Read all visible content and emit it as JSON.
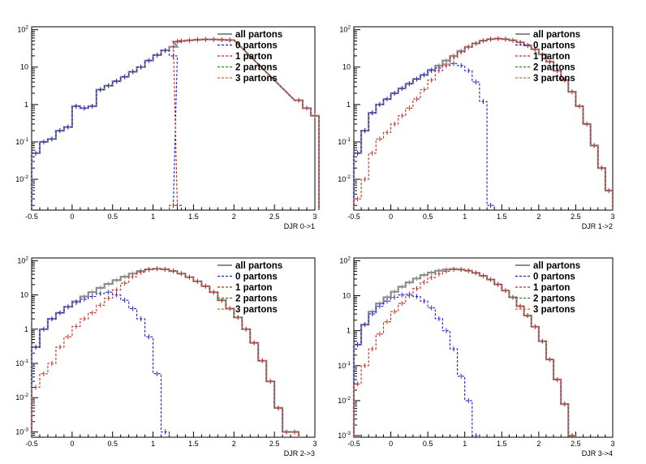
{
  "panels": [
    {
      "xlabel": "DJR 0->1"
    },
    {
      "xlabel": "DJR 1->2"
    },
    {
      "xlabel": "DJR 2->3"
    },
    {
      "xlabel": "DJR 3->4"
    }
  ],
  "legend": [
    "all partons",
    "0 partons",
    "1 parton",
    "2 partons",
    "3 partons"
  ],
  "colors": {
    "all": "#8c8c8c",
    "p0": "#1f1fd6",
    "p1": "#c8281e",
    "p2": "#1e8c1e",
    "p3": "#d2691e",
    "axis": "#000000"
  },
  "chart_data": [
    {
      "type": "line",
      "title": "",
      "xlabel": "DJR 0->1",
      "ylabel": "",
      "xlim": [
        -0.5,
        3
      ],
      "ylim": [
        0.0015,
        120
      ],
      "ylog": true,
      "xticks": [
        "-0.5",
        "0",
        "0.5",
        "1",
        "1.5",
        "2",
        "2.5",
        "3"
      ],
      "yticks": [
        "10^-2",
        "10^-1",
        "1",
        "10",
        "10^2"
      ],
      "x": [
        -0.45,
        -0.35,
        -0.25,
        -0.15,
        -0.05,
        0.05,
        0.15,
        0.25,
        0.35,
        0.45,
        0.55,
        0.65,
        0.75,
        0.85,
        0.95,
        1.05,
        1.15,
        1.25,
        1.3,
        1.35,
        1.45,
        1.55,
        1.65,
        1.75,
        1.85,
        1.95,
        2.8,
        2.9,
        3.0
      ],
      "series": [
        {
          "name": "all partons",
          "values": [
            0.05,
            0.1,
            0.12,
            0.2,
            0.25,
            0.9,
            0.8,
            0.9,
            2.5,
            3.2,
            4.2,
            5.5,
            7.5,
            10,
            15,
            21,
            28,
            35,
            48,
            50,
            52,
            54,
            55,
            55,
            54,
            53,
            1.3,
            0.8,
            0.5
          ]
        },
        {
          "name": "0 partons",
          "values": [
            0.05,
            0.1,
            0.12,
            0.2,
            0.25,
            0.9,
            0.8,
            0.9,
            2.5,
            3.2,
            4.2,
            5.5,
            7.5,
            10,
            15,
            21,
            28,
            20,
            0.002,
            null,
            null,
            null,
            null,
            null,
            null,
            null,
            null,
            null,
            null
          ]
        },
        {
          "name": "1 parton",
          "values": [
            null,
            null,
            null,
            null,
            null,
            null,
            null,
            null,
            null,
            null,
            null,
            null,
            null,
            null,
            null,
            null,
            null,
            0.002,
            48,
            50,
            52,
            54,
            55,
            55,
            54,
            53,
            1.3,
            0.8,
            0.5
          ]
        }
      ]
    },
    {
      "type": "line",
      "title": "",
      "xlabel": "DJR 1->2",
      "ylabel": "",
      "xlim": [
        -0.5,
        3
      ],
      "ylim": [
        0.0015,
        120
      ],
      "ylog": true,
      "xticks": [
        "-0.5",
        "0",
        "0.5",
        "1",
        "1.5",
        "2",
        "2.5",
        "3"
      ],
      "yticks": [
        "10^-2",
        "10^-1",
        "1",
        "10",
        "10^2"
      ],
      "x": [
        -0.45,
        -0.35,
        -0.25,
        -0.15,
        -0.05,
        0.05,
        0.15,
        0.25,
        0.35,
        0.45,
        0.55,
        0.65,
        0.75,
        0.85,
        0.95,
        1.05,
        1.15,
        1.25,
        1.35,
        1.45,
        1.55,
        1.65,
        1.75,
        1.85,
        1.95,
        2.05,
        2.15,
        2.25,
        2.35,
        2.45,
        2.55,
        2.65,
        2.75,
        2.85,
        2.95
      ],
      "series": [
        {
          "name": "all partons",
          "values": [
            0.05,
            0.2,
            0.6,
            1.0,
            1.4,
            2.0,
            2.7,
            3.6,
            4.8,
            6.2,
            8.5,
            11,
            15,
            20,
            27,
            35,
            43,
            51,
            56,
            58,
            56,
            52,
            46,
            38,
            30,
            22,
            14,
            8,
            4.5,
            2.2,
            0.9,
            0.3,
            0.08,
            0.02,
            0.005
          ]
        },
        {
          "name": "0 partons",
          "values": [
            0.05,
            0.2,
            0.6,
            1.0,
            1.4,
            2.0,
            2.7,
            3.6,
            4.8,
            6.2,
            8,
            9.5,
            11,
            12.5,
            11,
            8,
            4,
            1.2,
            0.002,
            null,
            null,
            null,
            null,
            null,
            null,
            null,
            null,
            null,
            null,
            null,
            null,
            null,
            null,
            null,
            null
          ]
        },
        {
          "name": "1 parton",
          "values": [
            0.003,
            0.01,
            0.05,
            0.12,
            0.18,
            0.3,
            0.5,
            0.8,
            1.4,
            2.5,
            4.5,
            8,
            12,
            18,
            25,
            34,
            43,
            51,
            56,
            58,
            56,
            52,
            46,
            38,
            30,
            22,
            14,
            8,
            4.5,
            2.2,
            0.9,
            0.3,
            0.08,
            0.02,
            0.005
          ]
        }
      ]
    },
    {
      "type": "line",
      "title": "",
      "xlabel": "DJR 2->3",
      "ylabel": "",
      "xlim": [
        -0.5,
        3
      ],
      "ylim": [
        0.0007,
        120
      ],
      "ylog": true,
      "xticks": [
        "-0.5",
        "0",
        "0.5",
        "1",
        "1.5",
        "2",
        "2.5",
        "3"
      ],
      "yticks": [
        "10^-3",
        "10^-2",
        "10^-1",
        "1",
        "10",
        "10^2"
      ],
      "x": [
        -0.45,
        -0.35,
        -0.25,
        -0.15,
        -0.05,
        0.05,
        0.15,
        0.25,
        0.35,
        0.45,
        0.55,
        0.65,
        0.75,
        0.85,
        0.95,
        1.05,
        1.15,
        1.25,
        1.35,
        1.45,
        1.55,
        1.65,
        1.75,
        1.85,
        1.95,
        2.05,
        2.15,
        2.25,
        2.35,
        2.45,
        2.55,
        2.65,
        2.75
      ],
      "series": [
        {
          "name": "all partons",
          "values": [
            0.3,
            1.0,
            2.0,
            3.0,
            4.5,
            6.5,
            9,
            12,
            16,
            21,
            27,
            34,
            42,
            50,
            56,
            58,
            56,
            50,
            42,
            33,
            25,
            18,
            12,
            7,
            4,
            2.2,
            1.0,
            0.4,
            0.12,
            0.03,
            0.005,
            0.001,
            0.001
          ]
        },
        {
          "name": "0 partons",
          "values": [
            0.3,
            1.0,
            2.0,
            3.0,
            4.5,
            6,
            7.5,
            9,
            11,
            12,
            10,
            7,
            4,
            2,
            0.6,
            0.05,
            0.001,
            null,
            null,
            null,
            null,
            null,
            null,
            null,
            null,
            null,
            null,
            null,
            null,
            null,
            null,
            null,
            null
          ]
        },
        {
          "name": "1 parton",
          "values": [
            0.02,
            0.05,
            0.1,
            0.3,
            0.6,
            1.2,
            2,
            3,
            5,
            8,
            14,
            22,
            34,
            46,
            55,
            58,
            56,
            50,
            42,
            33,
            25,
            18,
            12,
            7,
            4,
            2.2,
            1.0,
            0.4,
            0.12,
            0.03,
            0.005,
            0.001,
            0.001
          ]
        }
      ]
    },
    {
      "type": "line",
      "title": "",
      "xlabel": "DJR 3->4",
      "ylabel": "",
      "xlim": [
        -0.5,
        3
      ],
      "ylim": [
        0.0009,
        120
      ],
      "ylog": true,
      "xticks": [
        "-0.5",
        "0",
        "0.5",
        "1",
        "1.5",
        "2",
        "2.5",
        "3"
      ],
      "yticks": [
        "10^-3",
        "10^-2",
        "10^-1",
        "1",
        "10",
        "10^2"
      ],
      "x": [
        -0.45,
        -0.35,
        -0.25,
        -0.15,
        -0.05,
        0.05,
        0.15,
        0.25,
        0.35,
        0.45,
        0.55,
        0.65,
        0.75,
        0.85,
        0.95,
        1.05,
        1.15,
        1.25,
        1.35,
        1.45,
        1.55,
        1.65,
        1.75,
        1.85,
        1.95,
        2.05,
        2.15,
        2.25,
        2.35,
        2.45
      ],
      "series": [
        {
          "name": "all partons",
          "values": [
            0.4,
            1.5,
            3.5,
            6,
            9,
            13,
            18,
            24,
            31,
            39,
            46,
            52,
            56,
            58,
            56,
            52,
            45,
            37,
            29,
            21,
            14,
            9,
            5,
            2.7,
            1.3,
            0.5,
            0.15,
            0.04,
            0.008,
            0.001
          ]
        },
        {
          "name": "0 partons",
          "values": [
            0.4,
            1.5,
            3,
            5,
            7,
            9,
            10.5,
            11,
            9.5,
            7,
            4.5,
            2.2,
            1.0,
            0.3,
            0.05,
            0.01,
            0.001,
            null,
            null,
            null,
            null,
            null,
            null,
            null,
            null,
            null,
            null,
            null,
            null,
            null
          ]
        },
        {
          "name": "1 parton",
          "values": [
            0.03,
            0.1,
            0.3,
            0.8,
            1.8,
            3.5,
            6,
            10,
            16,
            24,
            33,
            42,
            50,
            56,
            56,
            52,
            45,
            37,
            29,
            21,
            14,
            9,
            5,
            2.7,
            1.3,
            0.5,
            0.15,
            0.04,
            0.008,
            0.001
          ]
        }
      ]
    }
  ]
}
